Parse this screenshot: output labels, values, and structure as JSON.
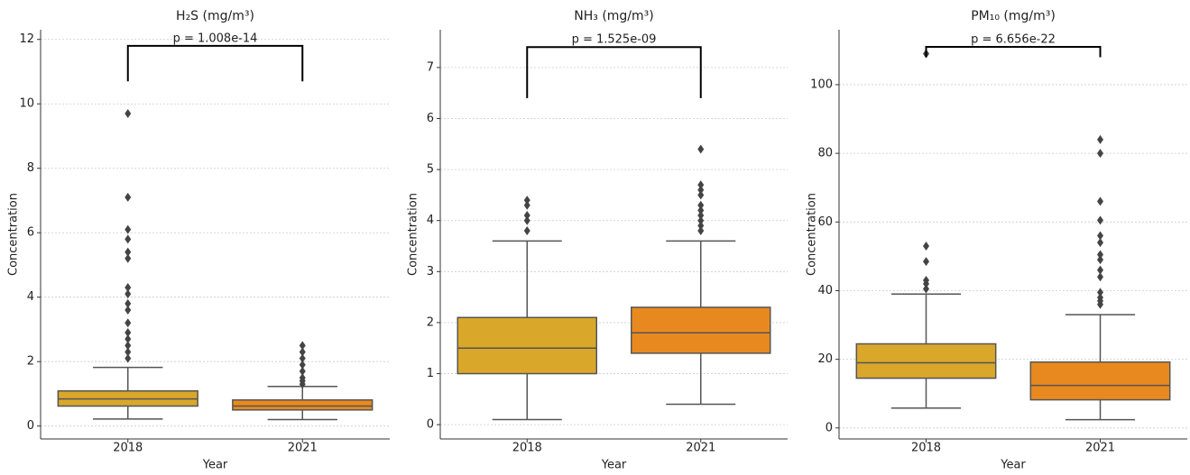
{
  "chart_data": [
    {
      "type": "box",
      "title": "H₂S (mg/m³)",
      "x_label": "Year",
      "y_label": "Concentration",
      "categories": [
        "2018",
        "2021"
      ],
      "colors": [
        "#d9a72a",
        "#e8891f"
      ],
      "boxes": [
        {
          "min": 0.22,
          "q1": 0.62,
          "median": 0.84,
          "q3": 1.09,
          "max": 1.82,
          "outliers": [
            9.7,
            7.1,
            6.1,
            5.8,
            5.4,
            5.2,
            4.3,
            4.1,
            3.8,
            3.6,
            3.2,
            2.9,
            2.7,
            2.5,
            2.3,
            2.1
          ]
        },
        {
          "min": 0.2,
          "q1": 0.5,
          "median": 0.62,
          "q3": 0.81,
          "max": 1.23,
          "outliers": [
            2.5,
            2.3,
            2.1,
            1.9,
            1.7,
            1.5,
            1.4,
            1.3
          ]
        }
      ],
      "annotation": {
        "text": "p = 1.008e-14",
        "bracket_low": 10.7,
        "bracket_high": 11.8
      },
      "ylim": [
        -0.4,
        12.3
      ],
      "yticks": [
        0,
        2,
        4,
        6,
        8,
        10,
        12
      ],
      "grid": true
    },
    {
      "type": "box",
      "title": "NH₃ (mg/m³)",
      "x_label": "Year",
      "y_label": "Concentration",
      "categories": [
        "2018",
        "2021"
      ],
      "colors": [
        "#d9a72a",
        "#e8891f"
      ],
      "boxes": [
        {
          "min": 0.1,
          "q1": 1.0,
          "median": 1.5,
          "q3": 2.1,
          "max": 3.6,
          "outliers": [
            4.4,
            4.3,
            4.1,
            4.0,
            3.8
          ]
        },
        {
          "min": 0.4,
          "q1": 1.4,
          "median": 1.8,
          "q3": 2.3,
          "max": 3.6,
          "outliers": [
            5.4,
            4.7,
            4.6,
            4.5,
            4.3,
            4.2,
            4.1,
            4.0,
            3.9,
            3.8
          ]
        }
      ],
      "annotation": {
        "text": "p = 1.525e-09",
        "bracket_low": 6.4,
        "bracket_high": 7.4
      },
      "ylim": [
        -0.28,
        7.74
      ],
      "yticks": [
        0,
        1,
        2,
        3,
        4,
        5,
        6,
        7
      ],
      "grid": true
    },
    {
      "type": "box",
      "title": "PM₁₀ (mg/m³)",
      "x_label": "Year",
      "y_label": "Concentration",
      "categories": [
        "2018",
        "2021"
      ],
      "colors": [
        "#d9a72a",
        "#e8891f"
      ],
      "boxes": [
        {
          "min": 5.8,
          "q1": 14.5,
          "median": 19,
          "q3": 24.5,
          "max": 39,
          "outliers": [
            109,
            53,
            48.5,
            43,
            42,
            40.5
          ]
        },
        {
          "min": 2.4,
          "q1": 8.2,
          "median": 12.4,
          "q3": 19.2,
          "max": 33,
          "outliers": [
            84,
            80,
            66,
            60.5,
            56,
            54,
            50.5,
            49,
            46,
            44,
            39.5,
            38,
            37,
            36
          ]
        }
      ],
      "annotation": {
        "text": "p = 6.656e-22",
        "bracket_low": 108,
        "bracket_high": 111
      },
      "ylim": [
        -3.2,
        116
      ],
      "yticks": [
        0,
        20,
        40,
        60,
        80,
        100
      ],
      "grid": true
    }
  ]
}
